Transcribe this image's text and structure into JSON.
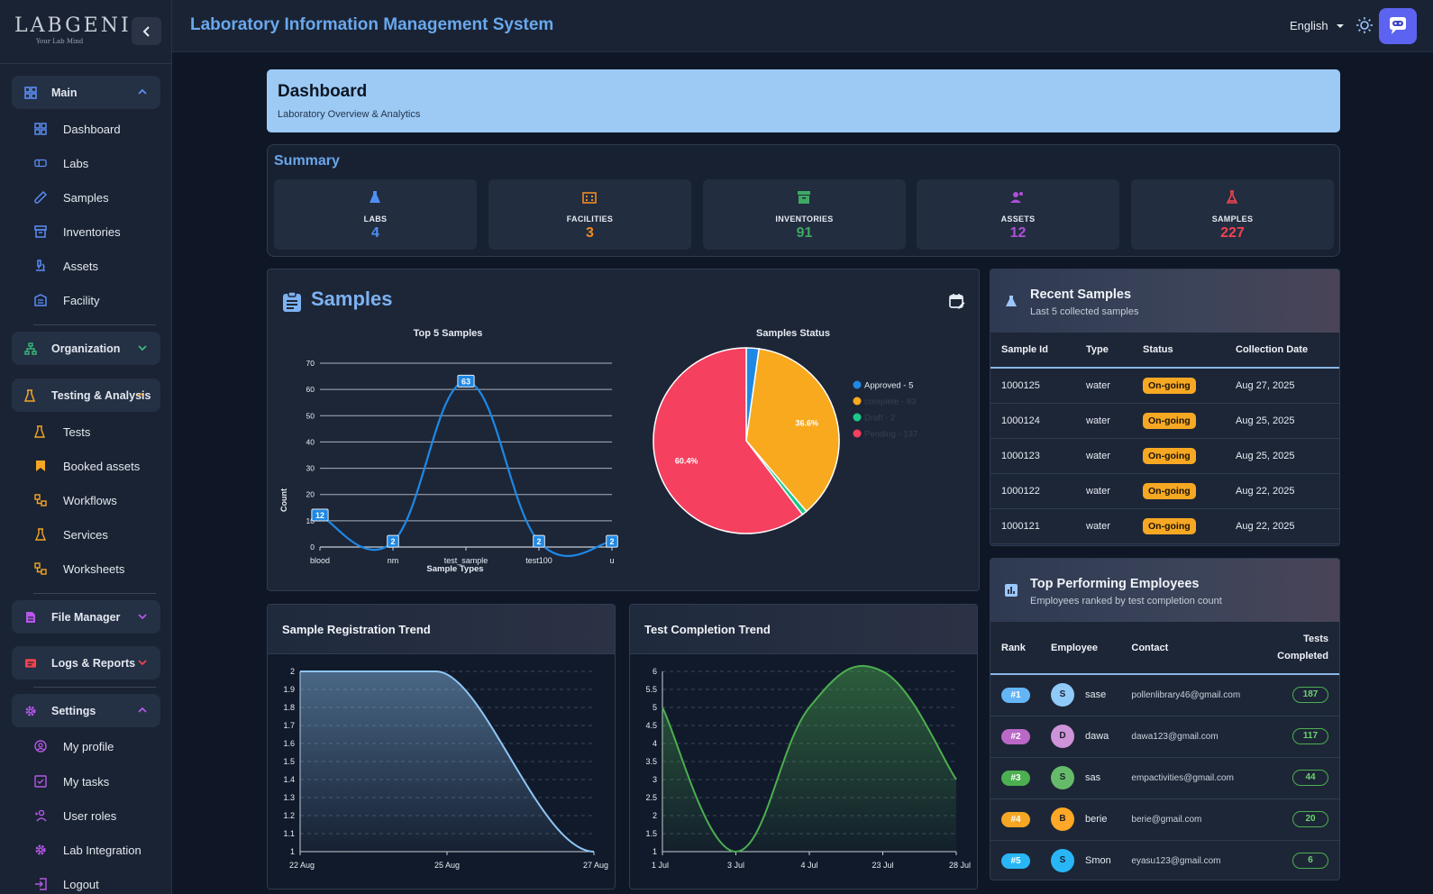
{
  "brand": {
    "name": "LABGENI",
    "tagline": "Your Lab Mind"
  },
  "header": {
    "title": "Laboratory Information Management System",
    "language": "English"
  },
  "sidebar": {
    "main": {
      "label": "Main",
      "items": [
        "Dashboard",
        "Labs",
        "Samples",
        "Inventories",
        "Assets",
        "Facility"
      ]
    },
    "organization": {
      "label": "Organization"
    },
    "testing": {
      "label": "Testing & Analysis",
      "items": [
        "Tests",
        "Booked assets",
        "Workflows",
        "Services",
        "Worksheets"
      ]
    },
    "file_manager": {
      "label": "File Manager"
    },
    "logs": {
      "label": "Logs & Reports"
    },
    "settings": {
      "label": "Settings",
      "items": [
        "My profile",
        "My tasks",
        "User roles",
        "Lab Integration",
        "Logout"
      ]
    }
  },
  "banner": {
    "title": "Dashboard",
    "subtitle": "Laboratory Overview & Analytics"
  },
  "summary": {
    "title": "Summary",
    "cards": [
      {
        "label": "LABS",
        "value": "4",
        "color": "#4f8ff5"
      },
      {
        "label": "FACILITIES",
        "value": "3",
        "color": "#f08a24"
      },
      {
        "label": "INVENTORIES",
        "value": "91",
        "color": "#3ea864"
      },
      {
        "label": "ASSETS",
        "value": "12",
        "color": "#b04fd9"
      },
      {
        "label": "SAMPLES",
        "value": "227",
        "color": "#f0434f"
      }
    ]
  },
  "samples_panel": {
    "title": "Samples"
  },
  "chart_data": [
    {
      "type": "line",
      "title": "Top 5 Samples",
      "xlabel": "Sample Types",
      "ylabel": "Count",
      "categories": [
        "blood",
        "nm",
        "test_sample",
        "test100",
        "u"
      ],
      "values": [
        12,
        2,
        63,
        2,
        2
      ],
      "ylim": [
        0,
        70
      ],
      "yticks": [
        0,
        10,
        20,
        30,
        40,
        50,
        60,
        70
      ],
      "color": "#1e88e5"
    },
    {
      "type": "pie",
      "title": "Samples Status",
      "labels": [
        "Approved - 5",
        "complete - 83",
        "Draft - 2",
        "Pending - 137"
      ],
      "values": [
        5,
        83,
        2,
        137
      ],
      "colors": [
        "#1e88e5",
        "#f8a91e",
        "#1cc88a",
        "#f5405f"
      ],
      "slice_labels": [
        "",
        "36.6%",
        "",
        "60.4%"
      ]
    },
    {
      "type": "area",
      "title": "Sample Registration Trend",
      "x": [
        "22 Aug",
        "25 Aug",
        "27 Aug"
      ],
      "values": [
        2,
        2,
        1
      ],
      "ylim": [
        1,
        2
      ],
      "yticks": [
        "1",
        "1.1",
        "1.2",
        "1.3",
        "1.4",
        "1.5",
        "1.6",
        "1.7",
        "1.8",
        "1.9",
        "2"
      ],
      "color": "#8ec5f5"
    },
    {
      "type": "area",
      "title": "Test Completion Trend",
      "x": [
        "1 Jul",
        "3 Jul",
        "4 Jul",
        "23 Jul",
        "28 Jul"
      ],
      "values": [
        5,
        1,
        5,
        6,
        3
      ],
      "ylim": [
        1,
        6
      ],
      "yticks": [
        "1",
        "1.5",
        "2",
        "2.5",
        "3",
        "3.5",
        "4",
        "4.5",
        "5",
        "5.5",
        "6"
      ],
      "color": "#4caf50"
    }
  ],
  "recent_samples": {
    "title": "Recent Samples",
    "subtitle": "Last 5 collected samples",
    "columns": [
      "Sample Id",
      "Type",
      "Status",
      "Collection Date"
    ],
    "rows": [
      [
        "1000125",
        "water",
        "On-going",
        "Aug 27, 2025"
      ],
      [
        "1000124",
        "water",
        "On-going",
        "Aug 25, 2025"
      ],
      [
        "1000123",
        "water",
        "On-going",
        "Aug 25, 2025"
      ],
      [
        "1000122",
        "water",
        "On-going",
        "Aug 22, 2025"
      ],
      [
        "1000121",
        "water",
        "On-going",
        "Aug 22, 2025"
      ]
    ]
  },
  "top_employees": {
    "title": "Top Performing Employees",
    "subtitle": "Employees ranked by test completion count",
    "columns": [
      "Rank",
      "Employee",
      "Contact",
      "Tests Completed"
    ],
    "rows": [
      {
        "rank": "#1",
        "initial": "S",
        "name": "sase",
        "email": "pollenlibrary46@gmail.com",
        "count": "187",
        "rank_color": "#64b5f6",
        "avatar_color": "#90caf9"
      },
      {
        "rank": "#2",
        "initial": "D",
        "name": "dawa",
        "email": "dawa123@gmail.com",
        "count": "117",
        "rank_color": "#ba68c8",
        "avatar_color": "#ce93d8"
      },
      {
        "rank": "#3",
        "initial": "S",
        "name": "sas",
        "email": "empactivities@gmail.com",
        "count": "44",
        "rank_color": "#4caf50",
        "avatar_color": "#66bb6a"
      },
      {
        "rank": "#4",
        "initial": "B",
        "name": "berie",
        "email": "berie@gmail.com",
        "count": "20",
        "rank_color": "#f5a623",
        "avatar_color": "#ffa726"
      },
      {
        "rank": "#5",
        "initial": "S",
        "name": "Smon",
        "email": "eyasu123@gmail.com",
        "count": "6",
        "rank_color": "#29b6f6",
        "avatar_color": "#29b6f6"
      }
    ]
  }
}
